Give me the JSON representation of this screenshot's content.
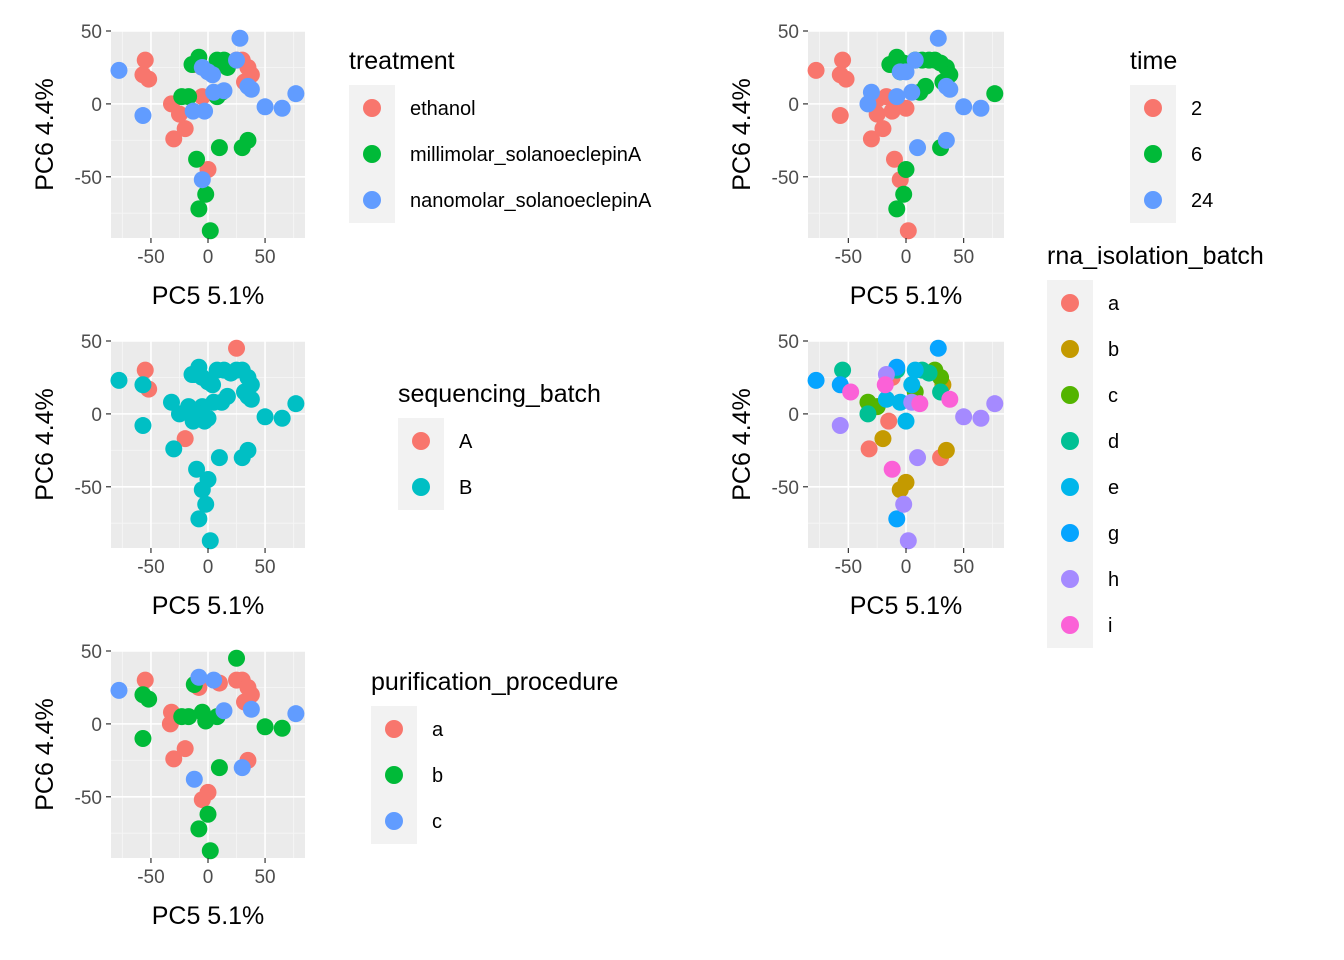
{
  "figure": {
    "background": "#ffffff",
    "panel_background": "#ebebeb",
    "grid_major": "#ffffff",
    "grid_minor": "#f5f5f5",
    "axis_text_color": "#4d4d4d",
    "title_color": "#000000"
  },
  "chart_data": [
    {
      "type": "scatter",
      "xlabel": "PC5 5.1%",
      "ylabel": "PC6 4.4%",
      "xlim": [
        -85,
        85
      ],
      "ylim": [
        -92,
        50
      ],
      "xticks": [
        -50,
        0,
        50
      ],
      "yticks": [
        -50,
        0,
        50
      ],
      "legend": {
        "title": "treatment",
        "position": "right"
      },
      "series": [
        {
          "name": "ethanol",
          "color": "#F8766D",
          "points": [
            [
              -55,
              30
            ],
            [
              -57,
              20
            ],
            [
              -52,
              17
            ],
            [
              -32,
              0
            ],
            [
              -12,
              27
            ],
            [
              -20,
              -17
            ],
            [
              -25,
              -7
            ],
            [
              -30,
              -24
            ],
            [
              0,
              -45
            ],
            [
              25,
              30
            ],
            [
              30,
              30
            ],
            [
              35,
              25
            ],
            [
              38,
              20
            ],
            [
              32,
              15
            ],
            [
              -5,
              5
            ],
            [
              10,
              28
            ]
          ]
        },
        {
          "name": "millimolar_solanoeclepinA",
          "color": "#00BA38",
          "points": [
            [
              -8,
              32
            ],
            [
              -14,
              27
            ],
            [
              8,
              30
            ],
            [
              14,
              30
            ],
            [
              17,
              25
            ],
            [
              -23,
              5
            ],
            [
              -17,
              5
            ],
            [
              8,
              5
            ],
            [
              12,
              8
            ],
            [
              -10,
              -38
            ],
            [
              10,
              -30
            ],
            [
              30,
              -30
            ],
            [
              35,
              -25
            ],
            [
              -2,
              -62
            ],
            [
              -8,
              -72
            ],
            [
              2,
              -87
            ]
          ]
        },
        {
          "name": "nanomolar_solanoeclepinA",
          "color": "#619CFF",
          "points": [
            [
              -78,
              23
            ],
            [
              -57,
              -8
            ],
            [
              -5,
              25
            ],
            [
              0,
              22
            ],
            [
              4,
              20
            ],
            [
              25,
              30
            ],
            [
              28,
              45
            ],
            [
              -13,
              -5
            ],
            [
              -3,
              -5
            ],
            [
              5,
              8
            ],
            [
              14,
              9
            ],
            [
              35,
              12
            ],
            [
              38,
              10
            ],
            [
              50,
              -2
            ],
            [
              65,
              -3
            ],
            [
              77,
              7
            ],
            [
              -5,
              -52
            ]
          ]
        }
      ]
    },
    {
      "type": "scatter",
      "xlabel": "PC5 5.1%",
      "ylabel": "PC6 4.4%",
      "xlim": [
        -85,
        85
      ],
      "ylim": [
        -92,
        50
      ],
      "xticks": [
        -50,
        0,
        50
      ],
      "yticks": [
        -50,
        0,
        50
      ],
      "legend": {
        "title": "time",
        "position": "right"
      },
      "series": [
        {
          "name": "2",
          "color": "#F8766D",
          "points": [
            [
              -78,
              23
            ],
            [
              -55,
              30
            ],
            [
              -57,
              20
            ],
            [
              -52,
              17
            ],
            [
              -57,
              -8
            ],
            [
              -25,
              -7
            ],
            [
              -30,
              -24
            ],
            [
              -20,
              -17
            ],
            [
              -17,
              5
            ],
            [
              -25,
              3
            ],
            [
              -12,
              -5
            ],
            [
              -10,
              -38
            ],
            [
              -5,
              -52
            ],
            [
              0,
              -3
            ],
            [
              2,
              -87
            ]
          ]
        },
        {
          "name": "6",
          "color": "#00BA38",
          "points": [
            [
              -8,
              32
            ],
            [
              -14,
              27
            ],
            [
              -2,
              28
            ],
            [
              8,
              30
            ],
            [
              14,
              30
            ],
            [
              20,
              30
            ],
            [
              25,
              30
            ],
            [
              30,
              28
            ],
            [
              35,
              25
            ],
            [
              38,
              20
            ],
            [
              32,
              15
            ],
            [
              17,
              12
            ],
            [
              12,
              8
            ],
            [
              -5,
              22
            ],
            [
              0,
              -45
            ],
            [
              -2,
              -62
            ],
            [
              -8,
              -72
            ],
            [
              30,
              -30
            ],
            [
              77,
              7
            ]
          ]
        },
        {
          "name": "24",
          "color": "#619CFF",
          "points": [
            [
              -30,
              8
            ],
            [
              -33,
              0
            ],
            [
              -8,
              5
            ],
            [
              5,
              8
            ],
            [
              28,
              45
            ],
            [
              8,
              30
            ],
            [
              35,
              12
            ],
            [
              38,
              10
            ],
            [
              50,
              -2
            ],
            [
              65,
              -3
            ],
            [
              35,
              -25
            ],
            [
              10,
              -30
            ],
            [
              -5,
              22
            ],
            [
              0,
              22
            ]
          ]
        }
      ]
    },
    {
      "type": "scatter",
      "xlabel": "PC5 5.1%",
      "ylabel": "PC6 4.4%",
      "xlim": [
        -85,
        85
      ],
      "ylim": [
        -92,
        50
      ],
      "xticks": [
        -50,
        0,
        50
      ],
      "yticks": [
        -50,
        0,
        50
      ],
      "legend": {
        "title": "sequencing_batch",
        "position": "right"
      },
      "series": [
        {
          "name": "A",
          "color": "#F8766D",
          "points": [
            [
              -55,
              30
            ],
            [
              -52,
              17
            ],
            [
              25,
              45
            ],
            [
              -20,
              -17
            ]
          ]
        },
        {
          "name": "B",
          "color": "#00BFC4",
          "points": [
            [
              -78,
              23
            ],
            [
              -57,
              20
            ],
            [
              -57,
              -8
            ],
            [
              -32,
              8
            ],
            [
              -30,
              -24
            ],
            [
              -25,
              0
            ],
            [
              -17,
              5
            ],
            [
              -12,
              27
            ],
            [
              -8,
              32
            ],
            [
              -14,
              27
            ],
            [
              -5,
              25
            ],
            [
              0,
              22
            ],
            [
              4,
              20
            ],
            [
              8,
              30
            ],
            [
              14,
              30
            ],
            [
              20,
              28
            ],
            [
              25,
              30
            ],
            [
              30,
              30
            ],
            [
              35,
              25
            ],
            [
              38,
              20
            ],
            [
              32,
              15
            ],
            [
              17,
              12
            ],
            [
              12,
              8
            ],
            [
              5,
              8
            ],
            [
              -5,
              5
            ],
            [
              -3,
              -5
            ],
            [
              -13,
              -5
            ],
            [
              -8,
              0
            ],
            [
              0,
              -3
            ],
            [
              35,
              12
            ],
            [
              38,
              10
            ],
            [
              50,
              -2
            ],
            [
              65,
              -3
            ],
            [
              77,
              7
            ],
            [
              10,
              -30
            ],
            [
              30,
              -30
            ],
            [
              35,
              -25
            ],
            [
              -10,
              -38
            ],
            [
              0,
              -45
            ],
            [
              -5,
              -52
            ],
            [
              -2,
              -62
            ],
            [
              -8,
              -72
            ],
            [
              2,
              -87
            ]
          ]
        }
      ]
    },
    {
      "type": "scatter",
      "xlabel": "PC5 5.1%",
      "ylabel": "PC6 4.4%",
      "xlim": [
        -85,
        85
      ],
      "ylim": [
        -92,
        50
      ],
      "xticks": [
        -50,
        0,
        50
      ],
      "yticks": [
        -50,
        0,
        50
      ],
      "legend": {
        "title": "rna_isolation_batch",
        "position": "right"
      },
      "series": [
        {
          "name": "a",
          "color": "#F8766D",
          "points": [
            [
              -32,
              -24
            ],
            [
              -15,
              -5
            ],
            [
              -12,
              25
            ],
            [
              30,
              -30
            ]
          ]
        },
        {
          "name": "b",
          "color": "#C49A00",
          "points": [
            [
              -20,
              -17
            ],
            [
              -5,
              -52
            ],
            [
              0,
              -47
            ],
            [
              35,
              -25
            ],
            [
              32,
              20
            ]
          ]
        },
        {
          "name": "c",
          "color": "#53B400",
          "points": [
            [
              -33,
              8
            ],
            [
              -25,
              5
            ],
            [
              8,
              15
            ],
            [
              25,
              30
            ],
            [
              30,
              25
            ]
          ]
        },
        {
          "name": "d",
          "color": "#00C094",
          "points": [
            [
              -55,
              30
            ],
            [
              -33,
              0
            ],
            [
              14,
              30
            ],
            [
              20,
              28
            ],
            [
              30,
              15
            ],
            [
              -8,
              30
            ]
          ]
        },
        {
          "name": "e",
          "color": "#00B6EB",
          "points": [
            [
              -5,
              8
            ],
            [
              0,
              -5
            ],
            [
              5,
              20
            ],
            [
              8,
              30
            ],
            [
              -17,
              10
            ]
          ]
        },
        {
          "name": "g",
          "color": "#06A4FF",
          "points": [
            [
              -78,
              23
            ],
            [
              -57,
              20
            ],
            [
              -8,
              32
            ],
            [
              28,
              45
            ],
            [
              -8,
              -72
            ]
          ]
        },
        {
          "name": "h",
          "color": "#A58AFF",
          "points": [
            [
              -57,
              -8
            ],
            [
              -17,
              27
            ],
            [
              10,
              -30
            ],
            [
              50,
              -2
            ],
            [
              65,
              -3
            ],
            [
              77,
              7
            ],
            [
              -2,
              -62
            ],
            [
              2,
              -87
            ],
            [
              5,
              8
            ]
          ]
        },
        {
          "name": "i",
          "color": "#FB61D7",
          "points": [
            [
              -48,
              15
            ],
            [
              -12,
              -38
            ],
            [
              12,
              7
            ],
            [
              38,
              10
            ],
            [
              -18,
              20
            ]
          ]
        }
      ]
    },
    {
      "type": "scatter",
      "xlabel": "PC5 5.1%",
      "ylabel": "PC6 4.4%",
      "xlim": [
        -85,
        85
      ],
      "ylim": [
        -92,
        50
      ],
      "xticks": [
        -50,
        0,
        50
      ],
      "yticks": [
        -50,
        0,
        50
      ],
      "legend": {
        "title": "purification_procedure",
        "position": "right"
      },
      "series": [
        {
          "name": "a",
          "color": "#F8766D",
          "points": [
            [
              -55,
              30
            ],
            [
              -32,
              8
            ],
            [
              -33,
              0
            ],
            [
              -20,
              -17
            ],
            [
              -30,
              -24
            ],
            [
              -8,
              25
            ],
            [
              25,
              30
            ],
            [
              30,
              30
            ],
            [
              35,
              25
            ],
            [
              38,
              20
            ],
            [
              32,
              15
            ],
            [
              10,
              28
            ],
            [
              -5,
              -52
            ],
            [
              0,
              -47
            ],
            [
              35,
              -25
            ]
          ]
        },
        {
          "name": "b",
          "color": "#00BA38",
          "points": [
            [
              -57,
              20
            ],
            [
              -52,
              17
            ],
            [
              -57,
              -10
            ],
            [
              -23,
              5
            ],
            [
              -17,
              5
            ],
            [
              -12,
              27
            ],
            [
              -5,
              8
            ],
            [
              -2,
              2
            ],
            [
              8,
              5
            ],
            [
              25,
              45
            ],
            [
              50,
              -2
            ],
            [
              65,
              -3
            ],
            [
              10,
              -30
            ],
            [
              0,
              -62
            ],
            [
              -8,
              -72
            ],
            [
              2,
              -87
            ]
          ]
        },
        {
          "name": "c",
          "color": "#619CFF",
          "points": [
            [
              -78,
              23
            ],
            [
              -8,
              32
            ],
            [
              5,
              30
            ],
            [
              14,
              9
            ],
            [
              38,
              10
            ],
            [
              77,
              7
            ],
            [
              -12,
              -38
            ],
            [
              30,
              -30
            ]
          ]
        }
      ]
    }
  ]
}
